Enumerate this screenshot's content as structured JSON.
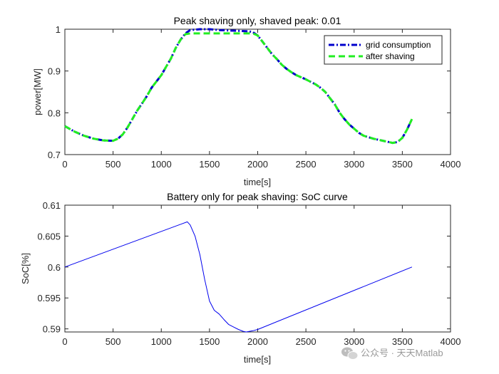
{
  "chart_data": [
    {
      "type": "line",
      "title": "Peak shaving only, shaved peak: 0.01",
      "xlabel": "time[s]",
      "ylabel": "power[MW]",
      "xlim": [
        0,
        4000
      ],
      "ylim": [
        0.7,
        1.0
      ],
      "xticks": [
        0,
        500,
        1000,
        1500,
        2000,
        2500,
        3000,
        3500,
        4000
      ],
      "yticks": [
        0.7,
        0.8,
        0.9,
        1.0
      ],
      "xtick_labels": [
        "0",
        "500",
        "1000",
        "1500",
        "2000",
        "2500",
        "3000",
        "3500",
        "4000"
      ],
      "ytick_labels": [
        "0.7",
        "0.8",
        "0.9",
        "1"
      ],
      "legend_position": "top-right",
      "grid": false,
      "x": [
        0,
        100,
        200,
        300,
        400,
        500,
        550,
        600,
        650,
        700,
        750,
        800,
        850,
        900,
        950,
        1000,
        1050,
        1100,
        1150,
        1200,
        1250,
        1300,
        1350,
        1400,
        1450,
        1500,
        1550,
        1600,
        1700,
        1800,
        1900,
        1950,
        2000,
        2050,
        2100,
        2150,
        2200,
        2250,
        2300,
        2350,
        2400,
        2500,
        2600,
        2650,
        2700,
        2750,
        2800,
        2850,
        2900,
        2950,
        3000,
        3050,
        3100,
        3200,
        3300,
        3400,
        3450,
        3500,
        3550,
        3600
      ],
      "series": [
        {
          "name": "grid consumption",
          "color": "#0000CC",
          "style": "dash-dot",
          "values": [
            0.768,
            0.755,
            0.745,
            0.738,
            0.734,
            0.733,
            0.738,
            0.748,
            0.765,
            0.785,
            0.805,
            0.822,
            0.84,
            0.86,
            0.875,
            0.89,
            0.91,
            0.93,
            0.955,
            0.975,
            0.99,
            0.998,
            0.999,
            1.0,
            1.0,
            1.0,
            0.999,
            0.998,
            0.997,
            0.996,
            0.995,
            0.993,
            0.985,
            0.97,
            0.955,
            0.94,
            0.928,
            0.915,
            0.905,
            0.897,
            0.89,
            0.88,
            0.868,
            0.86,
            0.85,
            0.835,
            0.82,
            0.8,
            0.785,
            0.772,
            0.762,
            0.752,
            0.745,
            0.738,
            0.733,
            0.728,
            0.73,
            0.74,
            0.76,
            0.785
          ]
        },
        {
          "name": "after shaving",
          "color": "#22EE22",
          "style": "dashed",
          "values": [
            0.768,
            0.755,
            0.745,
            0.738,
            0.734,
            0.733,
            0.738,
            0.748,
            0.765,
            0.785,
            0.805,
            0.822,
            0.84,
            0.86,
            0.875,
            0.89,
            0.91,
            0.93,
            0.955,
            0.975,
            0.988,
            0.99,
            0.99,
            0.99,
            0.99,
            0.99,
            0.99,
            0.99,
            0.99,
            0.99,
            0.99,
            0.99,
            0.985,
            0.97,
            0.955,
            0.94,
            0.928,
            0.915,
            0.905,
            0.897,
            0.89,
            0.88,
            0.868,
            0.86,
            0.85,
            0.835,
            0.82,
            0.8,
            0.785,
            0.772,
            0.762,
            0.752,
            0.745,
            0.738,
            0.733,
            0.728,
            0.73,
            0.74,
            0.76,
            0.785
          ]
        }
      ]
    },
    {
      "type": "line",
      "title": "Battery only for peak shaving: SoC curve",
      "xlabel": "time[s]",
      "ylabel": "SoC[%]",
      "xlim": [
        0,
        4000
      ],
      "ylim": [
        0.5895,
        0.61
      ],
      "xticks": [
        0,
        500,
        1000,
        1500,
        2000,
        2500,
        3000,
        3500,
        4000
      ],
      "yticks": [
        0.59,
        0.595,
        0.6,
        0.605,
        0.61
      ],
      "xtick_labels": [
        "0",
        "500",
        "1000",
        "1500",
        "2000",
        "2500",
        "3000",
        "3500",
        "4000"
      ],
      "ytick_labels": [
        "0.59",
        "0.595",
        "0.6",
        "0.605",
        "0.61"
      ],
      "grid": false,
      "x": [
        0,
        1270,
        1300,
        1350,
        1400,
        1450,
        1500,
        1550,
        1600,
        1650,
        1700,
        1750,
        1800,
        1850,
        1880,
        1950,
        2000,
        3600
      ],
      "series": [
        {
          "color": "#0000EE",
          "values": [
            0.6,
            0.6073,
            0.6068,
            0.605,
            0.602,
            0.598,
            0.5945,
            0.593,
            0.5924,
            0.5915,
            0.5907,
            0.5903,
            0.5899,
            0.5896,
            0.5895,
            0.5897,
            0.5899,
            0.6
          ]
        }
      ]
    }
  ],
  "watermark": {
    "icon": "wechat-icon",
    "text": "公众号 · 天天Matlab"
  }
}
